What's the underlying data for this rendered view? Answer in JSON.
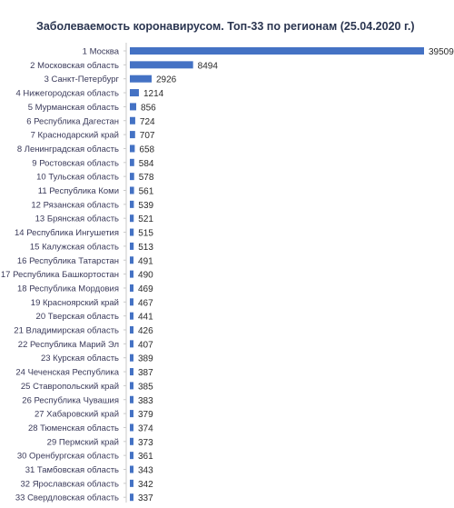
{
  "chart_data": {
    "type": "bar",
    "orientation": "horizontal",
    "title": "Заболеваемость коронавирусом. Топ-33 по регионам (25.04.2020 г.)",
    "xlabel": "",
    "ylabel": "",
    "grid": false,
    "legend": "none",
    "bar_color": "#4472C4",
    "categories": [
      "1 Москва",
      "2 Московская область",
      "3 Санкт-Петербург",
      "4 Нижегородская область",
      "5 Мурманская область",
      "6 Республика Дагестан",
      "7 Краснодарский край",
      "8 Ленинградская область",
      "9 Ростовская область",
      "10 Тульская область",
      "11 Республика Коми",
      "12 Рязанская область",
      "13 Брянская область",
      "14 Республика Ингушетия",
      "15 Калужская область",
      "16 Республика Татарстан",
      "17 Республика Башкортостан",
      "18 Республика Мордовия",
      "19 Красноярский край",
      "20 Тверская область",
      "21 Владимирская область",
      "22 Республика Марий Эл",
      "23 Курская область",
      "24 Чеченская Республика",
      "25 Ставропольский край",
      "26 Республика Чувашия",
      "27 Хабаровский край",
      "28 Тюменская область",
      "29 Пермский край",
      "30 Оренбургская область",
      "31 Тамбовская область",
      "32 Ярославская область",
      "33 Свердловская область"
    ],
    "values": [
      39509,
      8494,
      2926,
      1214,
      856,
      724,
      707,
      658,
      584,
      578,
      561,
      539,
      521,
      515,
      513,
      491,
      490,
      469,
      467,
      441,
      426,
      407,
      389,
      387,
      385,
      383,
      379,
      374,
      373,
      361,
      343,
      342,
      337
    ]
  }
}
